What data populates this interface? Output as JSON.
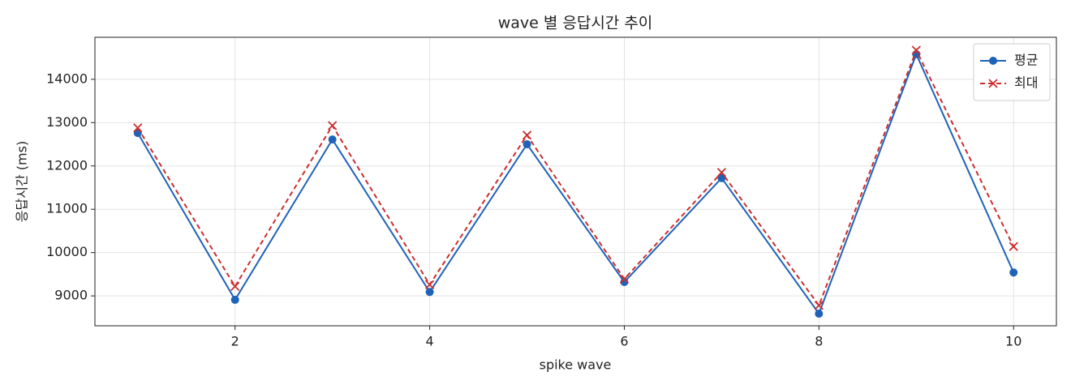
{
  "chart_data": {
    "type": "line",
    "title": "wave 별 응답시간 추이",
    "x_label": "spike wave",
    "y_label": "응답시간 (ms)",
    "x": [
      1,
      2,
      3,
      4,
      5,
      6,
      7,
      8,
      9,
      10
    ],
    "series": [
      {
        "name": "평균",
        "color": "#1f63b8",
        "marker": "circle",
        "dash": false,
        "values": [
          12760,
          8910,
          12610,
          9090,
          12500,
          9320,
          11720,
          8590,
          14580,
          9540
        ]
      },
      {
        "name": "최대",
        "color": "#cc2e2e",
        "marker": "x",
        "dash": true,
        "values": [
          12880,
          9220,
          12930,
          9260,
          12710,
          9390,
          11850,
          8780,
          14670,
          10140
        ]
      }
    ],
    "xlim": [
      0.56,
      10.44
    ],
    "xticks": [
      2,
      4,
      6,
      8,
      10
    ],
    "ylim": [
      8310,
      14970
    ],
    "yticks": [
      9000,
      10000,
      11000,
      12000,
      13000,
      14000
    ],
    "grid": true,
    "legend": "upper right"
  }
}
